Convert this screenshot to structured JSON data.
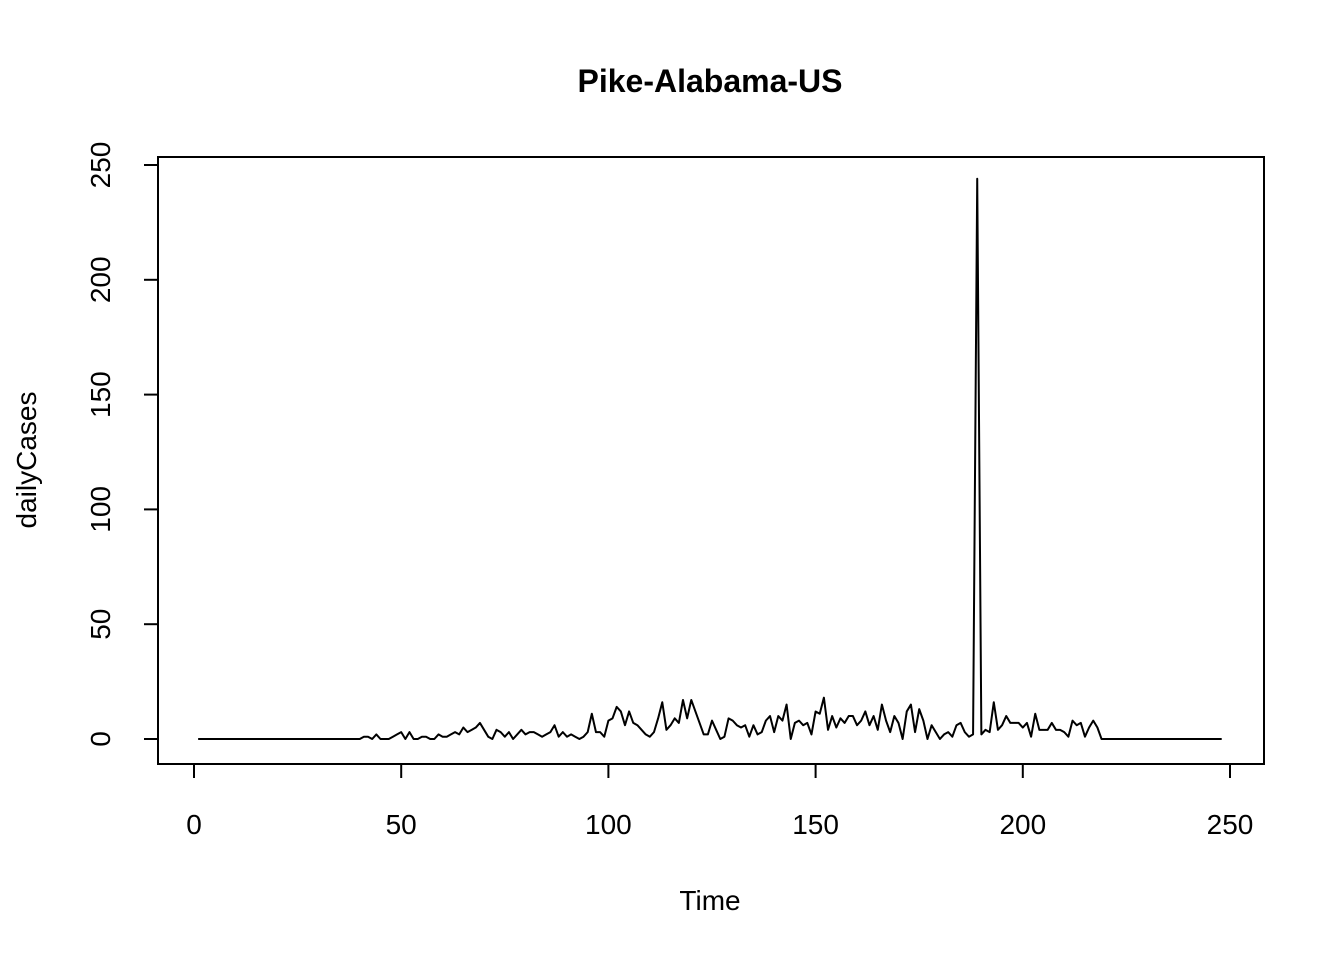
{
  "chart_data": {
    "type": "line",
    "title": "Pike-Alabama-US",
    "xlabel": "Time",
    "ylabel": "dailyCases",
    "xlim": [
      1,
      248
    ],
    "ylim": [
      0,
      250
    ],
    "x_ticks": [
      0,
      50,
      100,
      150,
      200,
      250
    ],
    "y_ticks": [
      0,
      50,
      100,
      150,
      200,
      250
    ],
    "x_tick_labels": [
      "0",
      "50",
      "100",
      "150",
      "200",
      "250"
    ],
    "y_tick_labels": [
      "0",
      "50",
      "100",
      "150",
      "200",
      "250"
    ],
    "grid": false,
    "line_color": "#000000",
    "x": [
      1,
      2,
      3,
      4,
      5,
      6,
      7,
      8,
      9,
      10,
      11,
      12,
      13,
      14,
      15,
      16,
      17,
      18,
      19,
      20,
      21,
      22,
      23,
      24,
      25,
      26,
      27,
      28,
      29,
      30,
      31,
      32,
      33,
      34,
      35,
      36,
      37,
      38,
      39,
      40,
      41,
      42,
      43,
      44,
      45,
      46,
      47,
      48,
      49,
      50,
      51,
      52,
      53,
      54,
      55,
      56,
      57,
      58,
      59,
      60,
      61,
      62,
      63,
      64,
      65,
      66,
      67,
      68,
      69,
      70,
      71,
      72,
      73,
      74,
      75,
      76,
      77,
      78,
      79,
      80,
      81,
      82,
      83,
      84,
      85,
      86,
      87,
      88,
      89,
      90,
      91,
      92,
      93,
      94,
      95,
      96,
      97,
      98,
      99,
      100,
      101,
      102,
      103,
      104,
      105,
      106,
      107,
      108,
      109,
      110,
      111,
      112,
      113,
      114,
      115,
      116,
      117,
      118,
      119,
      120,
      121,
      122,
      123,
      124,
      125,
      126,
      127,
      128,
      129,
      130,
      131,
      132,
      133,
      134,
      135,
      136,
      137,
      138,
      139,
      140,
      141,
      142,
      143,
      144,
      145,
      146,
      147,
      148,
      149,
      150,
      151,
      152,
      153,
      154,
      155,
      156,
      157,
      158,
      159,
      160,
      161,
      162,
      163,
      164,
      165,
      166,
      167,
      168,
      169,
      170,
      171,
      172,
      173,
      174,
      175,
      176,
      177,
      178,
      179,
      180,
      181,
      182,
      183,
      184,
      185,
      186,
      187,
      188,
      189,
      190,
      191,
      192,
      193,
      194,
      195,
      196,
      197,
      198,
      199,
      200,
      201,
      202,
      203,
      204,
      205,
      206,
      207,
      208,
      209,
      210,
      211,
      212,
      213,
      214,
      215,
      216,
      217,
      218,
      219,
      220,
      221,
      222,
      223,
      224,
      225,
      226,
      227,
      228,
      229,
      230,
      231,
      232,
      233,
      234,
      235,
      236,
      237,
      238,
      239,
      240,
      241,
      242,
      243,
      244,
      245,
      246,
      247,
      248
    ],
    "values": [
      0,
      0,
      0,
      0,
      0,
      0,
      0,
      0,
      0,
      0,
      0,
      0,
      0,
      0,
      0,
      0,
      0,
      0,
      0,
      0,
      0,
      0,
      0,
      0,
      0,
      0,
      0,
      0,
      0,
      0,
      0,
      0,
      0,
      0,
      0,
      0,
      0,
      0,
      0,
      0,
      1,
      1,
      0,
      2,
      0,
      0,
      0,
      1,
      2,
      3,
      0,
      3,
      0,
      0,
      1,
      1,
      0,
      0,
      2,
      1,
      1,
      2,
      3,
      2,
      5,
      3,
      4,
      5,
      7,
      4,
      1,
      0,
      4,
      3,
      1,
      3,
      0,
      2,
      4,
      2,
      3,
      3,
      2,
      1,
      2,
      3,
      6,
      1,
      3,
      1,
      2,
      1,
      0,
      1,
      3,
      11,
      3,
      3,
      1,
      8,
      9,
      14,
      12,
      6,
      12,
      7,
      6,
      4,
      2,
      1,
      3,
      9,
      16,
      4,
      6,
      9,
      7,
      17,
      9,
      17,
      12,
      7,
      2,
      2,
      8,
      4,
      0,
      1,
      9,
      8,
      6,
      5,
      6,
      1,
      6,
      2,
      3,
      8,
      10,
      3,
      10,
      8,
      15,
      0,
      7,
      8,
      6,
      7,
      2,
      12,
      11,
      18,
      4,
      10,
      5,
      9,
      7,
      10,
      10,
      6,
      8,
      12,
      6,
      10,
      4,
      15,
      8,
      3,
      10,
      7,
      0,
      12,
      15,
      3,
      13,
      8,
      0,
      6,
      3,
      0,
      2,
      3,
      1,
      6,
      7,
      3,
      1,
      2,
      244,
      2,
      4,
      3,
      16,
      4,
      6,
      10,
      7,
      7,
      7,
      5,
      7,
      1,
      11,
      4,
      4,
      4,
      7,
      4,
      4,
      3,
      1,
      8,
      6,
      7,
      1,
      5,
      8,
      5,
      0,
      0,
      0,
      0,
      0,
      0,
      0,
      0,
      0,
      0,
      0,
      0,
      0,
      0,
      0,
      0,
      0,
      0,
      0,
      0,
      0,
      0,
      0,
      0,
      0,
      0,
      0,
      0,
      0,
      0
    ]
  }
}
